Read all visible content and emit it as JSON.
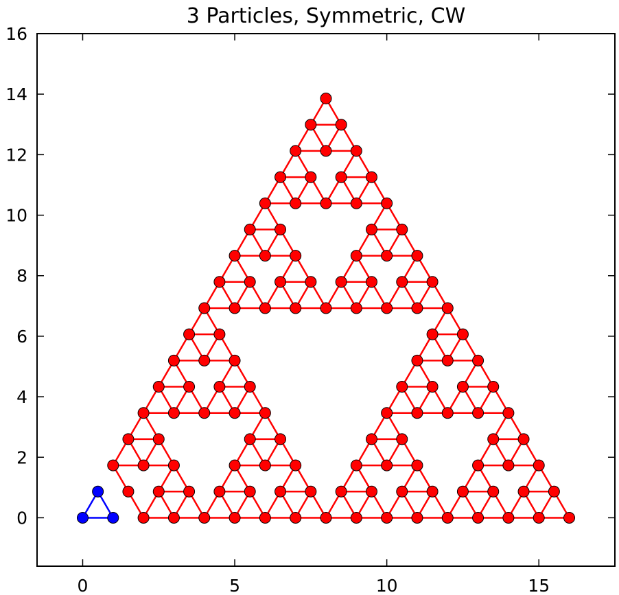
{
  "chart_data": {
    "type": "scatter",
    "title": "3 Particles, Symmetric, CW",
    "xlabel": "",
    "ylabel": "",
    "xlim": [
      -1.5,
      17.5
    ],
    "ylim": [
      -1.6,
      16
    ],
    "xticks": [
      0,
      5,
      10,
      15
    ],
    "yticks": [
      0,
      2,
      4,
      6,
      8,
      10,
      12,
      14,
      16
    ],
    "xtick_labels": [
      "0",
      "5",
      "10",
      "15"
    ],
    "ytick_labels": [
      "0",
      "2",
      "4",
      "6",
      "8",
      "10",
      "12",
      "14",
      "16"
    ],
    "grid": false,
    "legend": "none",
    "series": [
      {
        "color": "#0000ff",
        "marker_color": "#0000ff",
        "side_length": 1,
        "generations": 0,
        "origin": [
          0,
          0
        ]
      },
      {
        "color": "#ff0000",
        "marker_color": "#ff0000",
        "side_length": 1,
        "generations": 4,
        "origin": [
          0,
          0
        ],
        "omitted_points": [
          [
            0,
            0
          ],
          [
            0.5,
            0.866
          ],
          [
            1,
            0
          ]
        ]
      }
    ]
  }
}
